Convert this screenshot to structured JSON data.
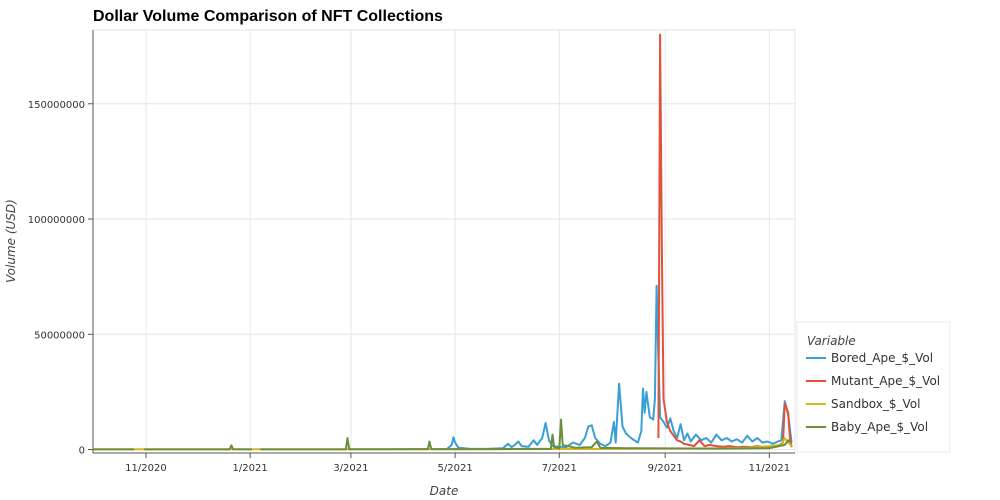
{
  "chart_data": {
    "type": "line",
    "title": "Dollar Volume Comparison of NFT Collections",
    "xlabel": "Date",
    "ylabel": "Volume (USD)",
    "x_ticks": [
      {
        "date": "2020-11-01",
        "label": "11/2020"
      },
      {
        "date": "2021-01-01",
        "label": "1/2021"
      },
      {
        "date": "2021-03-01",
        "label": "3/2021"
      },
      {
        "date": "2021-05-01",
        "label": "5/2021"
      },
      {
        "date": "2021-07-01",
        "label": "7/2021"
      },
      {
        "date": "2021-09-01",
        "label": "9/2021"
      },
      {
        "date": "2021-11-01",
        "label": "11/2021"
      }
    ],
    "y_ticks": [
      {
        "value": 0,
        "label": "0"
      },
      {
        "value": 50000000,
        "label": "50000000"
      },
      {
        "value": 100000000,
        "label": "100000000"
      },
      {
        "value": 150000000,
        "label": "150000000"
      }
    ],
    "xlim": [
      "2020-10-01",
      "2021-11-16"
    ],
    "ylim": [
      -1500000,
      182000000
    ],
    "grid": true,
    "legend": {
      "title": "Variable",
      "placement": "right-bottom"
    },
    "series": [
      {
        "name": "Bored_Ape_$_Vol",
        "color": "#3a9fd4",
        "points": [
          [
            "2021-04-26",
            50000
          ],
          [
            "2021-04-29",
            2000000
          ],
          [
            "2021-04-30",
            5300000
          ],
          [
            "2021-05-01",
            3000000
          ],
          [
            "2021-05-03",
            800000
          ],
          [
            "2021-05-10",
            300000
          ],
          [
            "2021-05-20",
            300000
          ],
          [
            "2021-05-29",
            600000
          ],
          [
            "2021-06-01",
            2500000
          ],
          [
            "2021-06-03",
            1000000
          ],
          [
            "2021-06-05",
            2000000
          ],
          [
            "2021-06-07",
            3500000
          ],
          [
            "2021-06-09",
            1500000
          ],
          [
            "2021-06-13",
            1200000
          ],
          [
            "2021-06-16",
            4000000
          ],
          [
            "2021-06-18",
            2000000
          ],
          [
            "2021-06-21",
            5000000
          ],
          [
            "2021-06-23",
            11500000
          ],
          [
            "2021-06-25",
            4000000
          ],
          [
            "2021-06-27",
            1500000
          ],
          [
            "2021-07-01",
            1200000
          ],
          [
            "2021-07-05",
            1000000
          ],
          [
            "2021-07-09",
            3000000
          ],
          [
            "2021-07-13",
            2000000
          ],
          [
            "2021-07-16",
            5000000
          ],
          [
            "2021-07-18",
            10000000
          ],
          [
            "2021-07-20",
            10500000
          ],
          [
            "2021-07-22",
            5000000
          ],
          [
            "2021-07-25",
            2500000
          ],
          [
            "2021-07-28",
            1500000
          ],
          [
            "2021-07-31",
            3000000
          ],
          [
            "2021-08-02",
            12000000
          ],
          [
            "2021-08-03",
            3000000
          ],
          [
            "2021-08-05",
            28500000
          ],
          [
            "2021-08-07",
            10000000
          ],
          [
            "2021-08-09",
            7000000
          ],
          [
            "2021-08-12",
            5000000
          ],
          [
            "2021-08-14",
            4000000
          ],
          [
            "2021-08-16",
            3000000
          ],
          [
            "2021-08-18",
            8000000
          ],
          [
            "2021-08-19",
            26500000
          ],
          [
            "2021-08-20",
            16000000
          ],
          [
            "2021-08-21",
            25000000
          ],
          [
            "2021-08-23",
            14000000
          ],
          [
            "2021-08-25",
            13000000
          ],
          [
            "2021-08-26",
            22000000
          ],
          [
            "2021-08-27",
            71000000
          ],
          [
            "2021-08-28",
            40000000
          ],
          [
            "2021-08-29",
            14000000
          ],
          [
            "2021-08-31",
            12000000
          ],
          [
            "2021-09-02",
            9500000
          ],
          [
            "2021-09-04",
            13500000
          ],
          [
            "2021-09-06",
            8000000
          ],
          [
            "2021-09-08",
            5000000
          ],
          [
            "2021-09-10",
            11000000
          ],
          [
            "2021-09-12",
            4000000
          ],
          [
            "2021-09-14",
            7000000
          ],
          [
            "2021-09-16",
            3500000
          ],
          [
            "2021-09-19",
            6500000
          ],
          [
            "2021-09-22",
            4000000
          ],
          [
            "2021-09-25",
            5000000
          ],
          [
            "2021-09-28",
            3000000
          ],
          [
            "2021-10-01",
            6500000
          ],
          [
            "2021-10-04",
            4000000
          ],
          [
            "2021-10-07",
            5000000
          ],
          [
            "2021-10-10",
            3500000
          ],
          [
            "2021-10-13",
            4500000
          ],
          [
            "2021-10-16",
            3000000
          ],
          [
            "2021-10-19",
            6000000
          ],
          [
            "2021-10-22",
            3500000
          ],
          [
            "2021-10-25",
            5000000
          ],
          [
            "2021-10-28",
            3000000
          ],
          [
            "2021-10-31",
            3500000
          ],
          [
            "2021-11-03",
            2500000
          ],
          [
            "2021-11-06",
            3500000
          ],
          [
            "2021-11-08",
            4000000
          ],
          [
            "2021-11-10",
            21000000
          ],
          [
            "2021-11-12",
            15000000
          ],
          [
            "2021-11-14",
            3000000
          ]
        ]
      },
      {
        "name": "Mutant_Ape_$_Vol",
        "color": "#e0523a",
        "points": [
          [
            "2021-08-28",
            5000000
          ],
          [
            "2021-08-29",
            180000000
          ],
          [
            "2021-08-30",
            90000000
          ],
          [
            "2021-08-31",
            22000000
          ],
          [
            "2021-09-01",
            17000000
          ],
          [
            "2021-09-02",
            12000000
          ],
          [
            "2021-09-04",
            8000000
          ],
          [
            "2021-09-06",
            6000000
          ],
          [
            "2021-09-08",
            4000000
          ],
          [
            "2021-09-10",
            3500000
          ],
          [
            "2021-09-12",
            2500000
          ],
          [
            "2021-09-15",
            2000000
          ],
          [
            "2021-09-18",
            1500000
          ],
          [
            "2021-09-21",
            4000000
          ],
          [
            "2021-09-24",
            1500000
          ],
          [
            "2021-09-27",
            2000000
          ],
          [
            "2021-10-01",
            1500000
          ],
          [
            "2021-10-05",
            1200000
          ],
          [
            "2021-10-09",
            1500000
          ],
          [
            "2021-10-13",
            1000000
          ],
          [
            "2021-10-17",
            1200000
          ],
          [
            "2021-10-21",
            1000000
          ],
          [
            "2021-10-25",
            1500000
          ],
          [
            "2021-10-29",
            1000000
          ],
          [
            "2021-11-02",
            1200000
          ],
          [
            "2021-11-06",
            1500000
          ],
          [
            "2021-11-09",
            3000000
          ],
          [
            "2021-11-10",
            20000000
          ],
          [
            "2021-11-12",
            16000000
          ],
          [
            "2021-11-13",
            5000000
          ],
          [
            "2021-11-14",
            1000000
          ]
        ]
      },
      {
        "name": "Sandbox_$_Vol",
        "color": "#d9b51e",
        "points": [
          [
            "2020-10-01",
            100000
          ],
          [
            "2020-12-01",
            100000
          ],
          [
            "2021-02-01",
            100000
          ],
          [
            "2021-04-01",
            100000
          ],
          [
            "2021-06-01",
            200000
          ],
          [
            "2021-08-01",
            300000
          ],
          [
            "2021-09-01",
            400000
          ],
          [
            "2021-10-01",
            500000
          ],
          [
            "2021-10-20",
            800000
          ],
          [
            "2021-11-01",
            1500000
          ],
          [
            "2021-11-08",
            2000000
          ],
          [
            "2021-11-10",
            5000000
          ],
          [
            "2021-11-12",
            3000000
          ],
          [
            "2021-11-14",
            1500000
          ]
        ]
      },
      {
        "name": "Baby_Ape_$_Vol",
        "color": "#6b8e3a",
        "points": [
          [
            "2020-10-01",
            50000
          ],
          [
            "2020-10-25",
            50000
          ],
          [
            "2020-10-26",
            null
          ],
          [
            "2020-10-31",
            50000
          ],
          [
            "2020-12-01",
            50000
          ],
          [
            "2020-12-20",
            50000
          ],
          [
            "2020-12-21",
            1800000
          ],
          [
            "2020-12-22",
            100000
          ],
          [
            "2021-01-02",
            50000
          ],
          [
            "2021-01-03",
            null
          ],
          [
            "2021-01-07",
            50000
          ],
          [
            "2021-02-26",
            50000
          ],
          [
            "2021-02-27",
            5000000
          ],
          [
            "2021-02-28",
            100000
          ],
          [
            "2021-03-20",
            100000
          ],
          [
            "2021-04-10",
            200000
          ],
          [
            "2021-04-15",
            200000
          ],
          [
            "2021-04-16",
            3500000
          ],
          [
            "2021-04-17",
            200000
          ],
          [
            "2021-05-15",
            200000
          ],
          [
            "2021-06-10",
            300000
          ],
          [
            "2021-06-26",
            300000
          ],
          [
            "2021-06-27",
            6500000
          ],
          [
            "2021-06-28",
            1000000
          ],
          [
            "2021-07-01",
            500000
          ],
          [
            "2021-07-02",
            13000000
          ],
          [
            "2021-07-03",
            2000000
          ],
          [
            "2021-07-10",
            800000
          ],
          [
            "2021-07-20",
            1000000
          ],
          [
            "2021-07-23",
            3500000
          ],
          [
            "2021-07-25",
            700000
          ],
          [
            "2021-08-10",
            600000
          ],
          [
            "2021-09-01",
            500000
          ],
          [
            "2021-10-01",
            400000
          ],
          [
            "2021-11-01",
            600000
          ],
          [
            "2021-11-10",
            2000000
          ],
          [
            "2021-11-12",
            4000000
          ],
          [
            "2021-11-14",
            3000000
          ]
        ]
      }
    ]
  }
}
